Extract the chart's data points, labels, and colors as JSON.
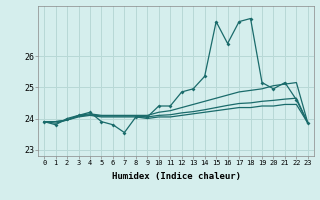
{
  "x_values": [
    0,
    1,
    2,
    3,
    4,
    5,
    6,
    7,
    8,
    9,
    10,
    11,
    12,
    13,
    14,
    15,
    16,
    17,
    18,
    19,
    20,
    21,
    22,
    23
  ],
  "line1": [
    23.9,
    23.8,
    24.0,
    24.1,
    24.2,
    23.9,
    23.8,
    23.55,
    24.05,
    24.05,
    24.4,
    24.4,
    24.85,
    24.95,
    25.35,
    27.1,
    26.4,
    27.1,
    27.2,
    25.15,
    24.95,
    25.15,
    24.6,
    23.85
  ],
  "line2": [
    23.9,
    23.9,
    23.95,
    24.1,
    24.15,
    24.1,
    24.1,
    24.1,
    24.1,
    24.1,
    24.2,
    24.25,
    24.35,
    24.45,
    24.55,
    24.65,
    24.75,
    24.85,
    24.9,
    24.95,
    25.05,
    25.1,
    25.15,
    23.85
  ],
  "line3": [
    23.9,
    23.85,
    23.95,
    24.08,
    24.12,
    24.08,
    24.08,
    24.08,
    24.08,
    24.05,
    24.1,
    24.12,
    24.18,
    24.22,
    24.28,
    24.35,
    24.42,
    24.48,
    24.5,
    24.55,
    24.58,
    24.62,
    24.65,
    23.85
  ],
  "line4": [
    23.9,
    23.9,
    23.95,
    24.05,
    24.1,
    24.05,
    24.05,
    24.05,
    24.05,
    24.0,
    24.05,
    24.05,
    24.1,
    24.15,
    24.2,
    24.25,
    24.3,
    24.35,
    24.35,
    24.4,
    24.4,
    24.45,
    24.45,
    23.85
  ],
  "line_color": "#1a6b6b",
  "bg_color": "#d5eeed",
  "grid_color": "#b8d8d6",
  "xlabel": "Humidex (Indice chaleur)",
  "ylim": [
    22.8,
    27.6
  ],
  "yticks": [
    23,
    24,
    25,
    26
  ],
  "xticks": [
    0,
    1,
    2,
    3,
    4,
    5,
    6,
    7,
    8,
    9,
    10,
    11,
    12,
    13,
    14,
    15,
    16,
    17,
    18,
    19,
    20,
    21,
    22,
    23
  ]
}
